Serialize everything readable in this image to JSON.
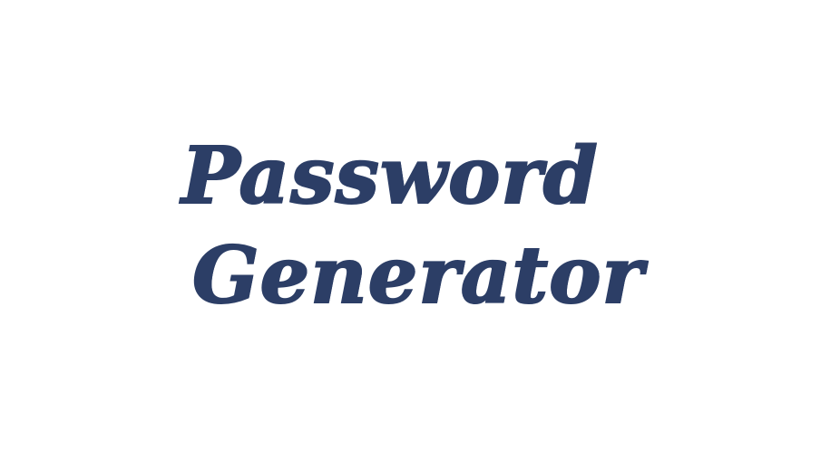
{
  "title": {
    "line1": "Password",
    "line2": "Generator"
  },
  "colors": {
    "text": "#2c3e66",
    "background": "#ffffff"
  }
}
